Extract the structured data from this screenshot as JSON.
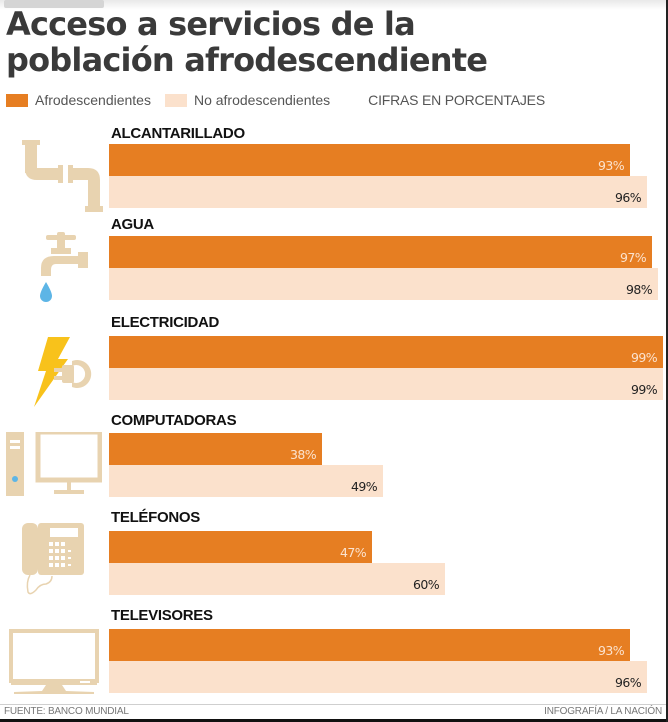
{
  "header": {
    "title_line1": "Acceso a servicios de la",
    "title_line2": "población afrodescendiente"
  },
  "legend": {
    "items": [
      {
        "label": "Afrodescendientes",
        "color": "#e67e22"
      },
      {
        "label": "No afrodescendientes",
        "color": "#fbe1cc"
      }
    ],
    "note": "CIFRAS EN PORCENTAJES"
  },
  "footer": {
    "source": "FUENTE: BANCO MUNDIAL",
    "credit": "INFOGRAFÍA / LA NACIÓN"
  },
  "chart_data": {
    "type": "bar",
    "orientation": "horizontal",
    "title": "Acceso a servicios de la población afrodescendiente",
    "unit": "%",
    "xlim": [
      0,
      100
    ],
    "grid": false,
    "legend_position": "top-left",
    "categories": [
      "ALCANTARILLADO",
      "AGUA",
      "ELECTRICIDAD",
      "COMPUTADORAS",
      "TELÉFONOS",
      "TELEVISORES"
    ],
    "icons": [
      "pipe-icon",
      "faucet-icon",
      "electricity-plug-icon",
      "computer-icon",
      "telephone-icon",
      "television-icon"
    ],
    "series": [
      {
        "name": "Afrodescendientes",
        "color": "#e67e22",
        "values": [
          93,
          97,
          99,
          38,
          47,
          93
        ],
        "labels": [
          "93%",
          "97%",
          "99%",
          "38%",
          "47%",
          "93%"
        ]
      },
      {
        "name": "No afrodescendientes",
        "color": "#fbe1cc",
        "values": [
          96,
          98,
          99,
          49,
          60,
          96
        ],
        "labels": [
          "96%",
          "98%",
          "99%",
          "49%",
          "60%",
          "96%"
        ]
      }
    ]
  }
}
